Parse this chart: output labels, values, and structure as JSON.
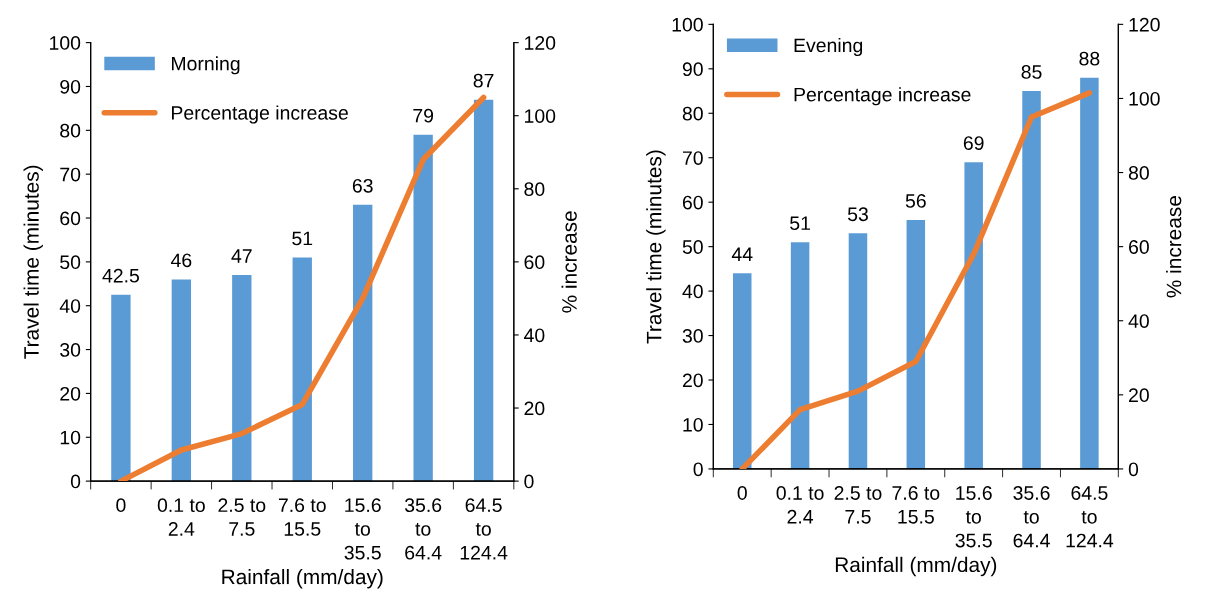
{
  "chart_data": [
    {
      "type": "bar",
      "categories": [
        "0",
        "0.1 to\n2.4",
        "2.5 to\n7.5",
        "7.6 to\n15.5",
        "15.6\nto\n35.5",
        "35.6\nto\n64.4",
        "64.5\nto\n124.4"
      ],
      "xlabel": "Rainfall (mm/day)",
      "ylabel": "Travel time (minutes)",
      "y2label": "% increase",
      "ylim": [
        0,
        100
      ],
      "yticks": [
        0,
        10,
        20,
        30,
        40,
        50,
        60,
        70,
        80,
        90,
        100
      ],
      "y2lim": [
        0,
        120
      ],
      "y2ticks": [
        0,
        20,
        40,
        60,
        80,
        100,
        120
      ],
      "legend": "top left",
      "grid": false,
      "series": [
        {
          "name": "Morning",
          "color": "#5b9bd5",
          "values": [
            42.5,
            46,
            47,
            51,
            63,
            79,
            87
          ],
          "value_labels": [
            "42.5",
            "46",
            "47",
            "51",
            "63",
            "79",
            "87"
          ]
        },
        {
          "name": "Percentage increase",
          "type": "line",
          "axis": "y2",
          "color": "#ed7d31",
          "values": [
            0,
            8.5,
            13,
            21,
            50,
            88,
            105
          ]
        }
      ]
    },
    {
      "type": "bar",
      "categories": [
        "0",
        "0.1 to\n2.4",
        "2.5 to\n7.5",
        "7.6 to\n15.5",
        "15.6\nto\n35.5",
        "35.6\nto\n64.4",
        "64.5\nto\n124.4"
      ],
      "xlabel": "Rainfall (mm/day)",
      "ylabel": "Travel time (minutes)",
      "y2label": "% increase",
      "ylim": [
        0,
        100
      ],
      "yticks": [
        0,
        10,
        20,
        30,
        40,
        50,
        60,
        70,
        80,
        90,
        100
      ],
      "y2lim": [
        0,
        120
      ],
      "y2ticks": [
        0,
        20,
        40,
        60,
        80,
        100,
        120
      ],
      "legend": "top left",
      "grid": false,
      "series": [
        {
          "name": "Evening",
          "color": "#5b9bd5",
          "values": [
            44,
            51,
            53,
            56,
            69,
            85,
            88
          ],
          "value_labels": [
            "44",
            "51",
            "53",
            "56",
            "69",
            "85",
            "88"
          ]
        },
        {
          "name": "Percentage increase",
          "type": "line",
          "axis": "y2",
          "color": "#ed7d31",
          "values": [
            0,
            16,
            21,
            29,
            58,
            95,
            101.5
          ]
        }
      ]
    }
  ]
}
